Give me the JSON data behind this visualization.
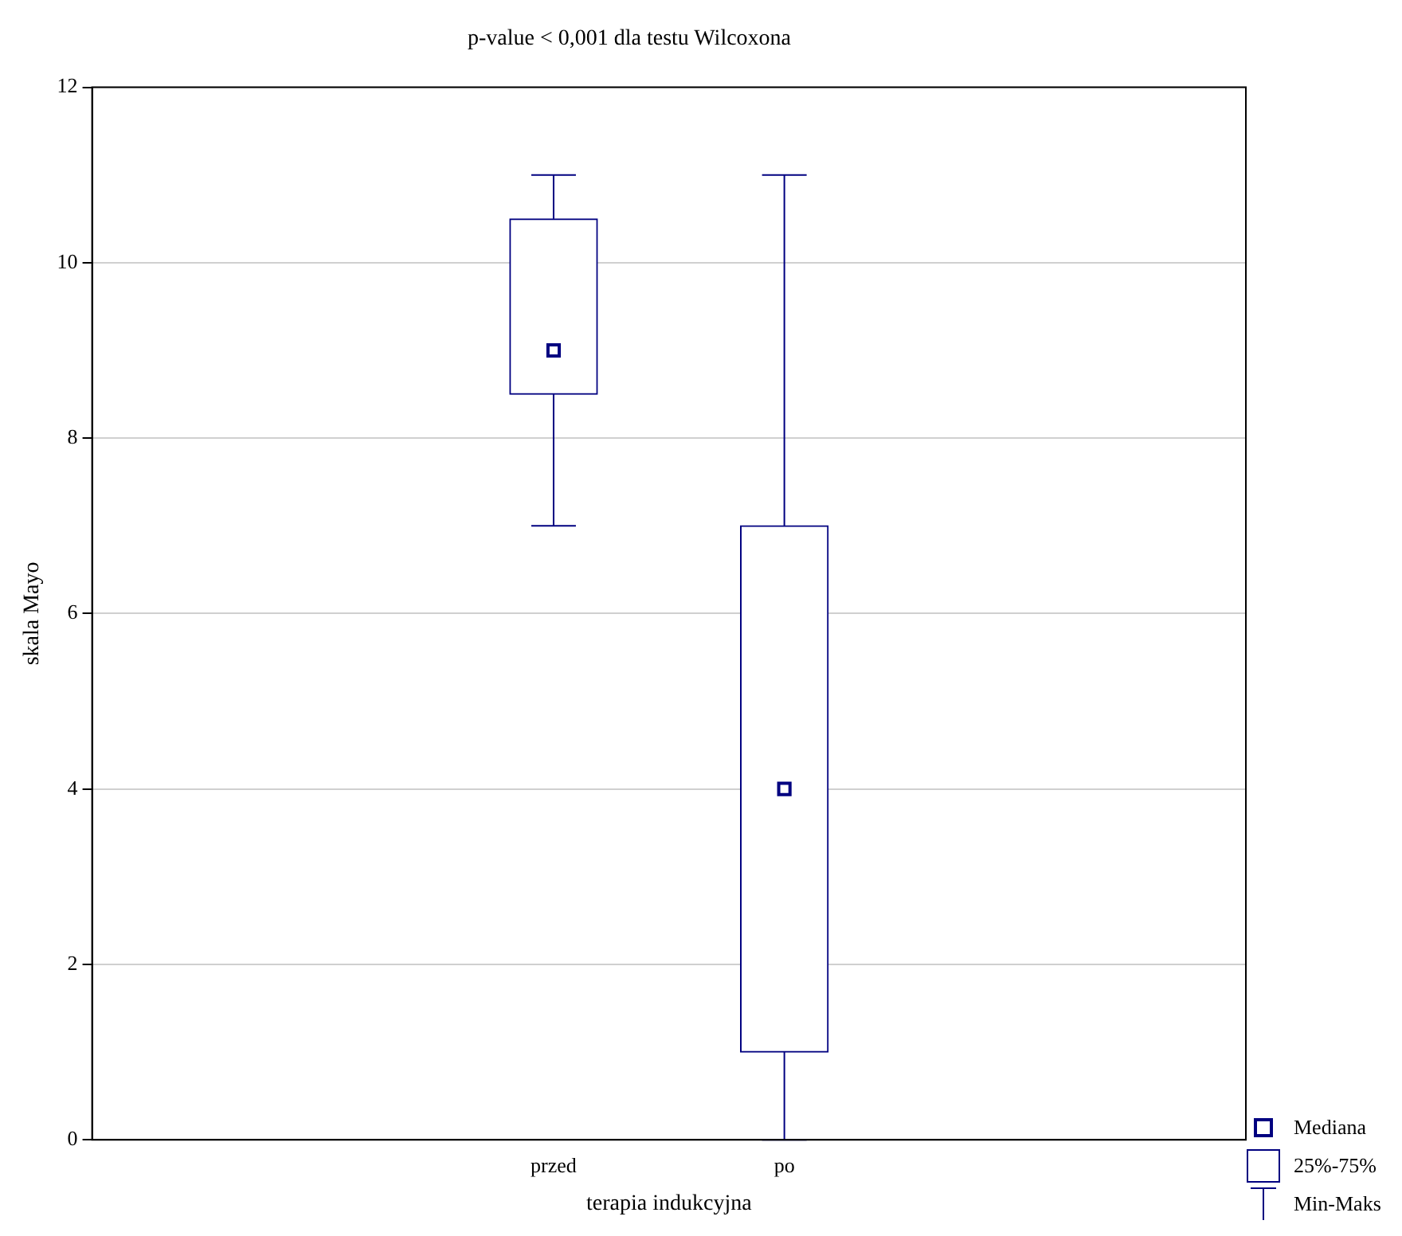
{
  "chart_data": {
    "type": "box",
    "title": "p-value < 0,001 dla testu Wilcoxona",
    "xlabel": "terapia indukcyjna",
    "ylabel": "skala Mayo",
    "categories": [
      "przed",
      "po"
    ],
    "boxes": [
      {
        "low": 7,
        "q1": 8.5,
        "median": 9,
        "q3": 10.5,
        "high": 11
      },
      {
        "low": 0,
        "q1": 1,
        "median": 4,
        "q3": 7,
        "high": 11
      }
    ],
    "color": "#000080",
    "ylim": [
      0,
      12
    ],
    "yticks": [
      0,
      2,
      4,
      6,
      8,
      10,
      12
    ],
    "grid": "y",
    "marker": "square",
    "legend": false,
    "annotations": [
      "Mediana",
      "25%-75%",
      "Min-Maks"
    ]
  }
}
